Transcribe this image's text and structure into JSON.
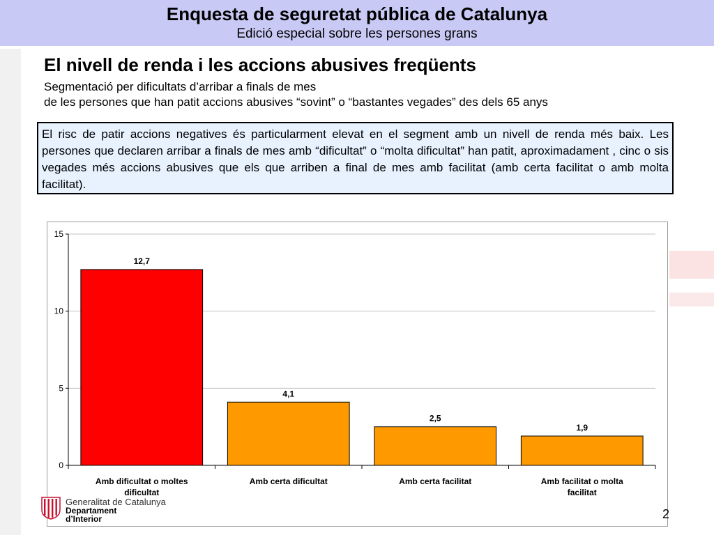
{
  "header": {
    "title": "Enquesta de seguretat pública de Catalunya",
    "subtitle": "Edició especial sobre les persones grans"
  },
  "section": {
    "title": "El nivell de renda i les accions abusives freqüents",
    "subtitle_line1": "Segmentació per dificultats d’arribar a finals de mes",
    "subtitle_line2": "de les persones que han patit accions abusives “sovint” o “bastantes vegades” des dels 65 anys"
  },
  "note": {
    "text": "El risc de patir accions negatives és particularment elevat en el segment amb un nivell de renda més baix. Les persones que declaren arribar a finals de mes amb “dificultat” o “molta dificultat” han patit, aproximadament , cinc o sis vegades més accions abusives que els que arriben a final de mes amb facilitat (amb certa facilitat o amb molta facilitat)."
  },
  "chart_data": {
    "type": "bar",
    "categories": [
      "Amb dificultat o moltes dificultat",
      "Amb certa dificultat",
      "Amb certa facilitat",
      "Amb facilitat o molta facilitat"
    ],
    "values": [
      12.7,
      4.1,
      2.5,
      1.9
    ],
    "value_labels": [
      "12,7",
      "4,1",
      "2,5",
      "1,9"
    ],
    "bar_colors": [
      "#ff0000",
      "#ff9900",
      "#ff9900",
      "#ff9900"
    ],
    "ylim": [
      0,
      15
    ],
    "yticks": [
      0,
      5,
      10,
      15
    ],
    "grid": true,
    "legend": false,
    "xlabel": "",
    "ylabel": ""
  },
  "footer": {
    "org_line1": "Generalitat de Catalunya",
    "org_line2": "Departament",
    "org_line3": "d’Interior",
    "page_number": "2",
    "flag_colors": [
      "#d8102e",
      "#ffffff"
    ]
  }
}
